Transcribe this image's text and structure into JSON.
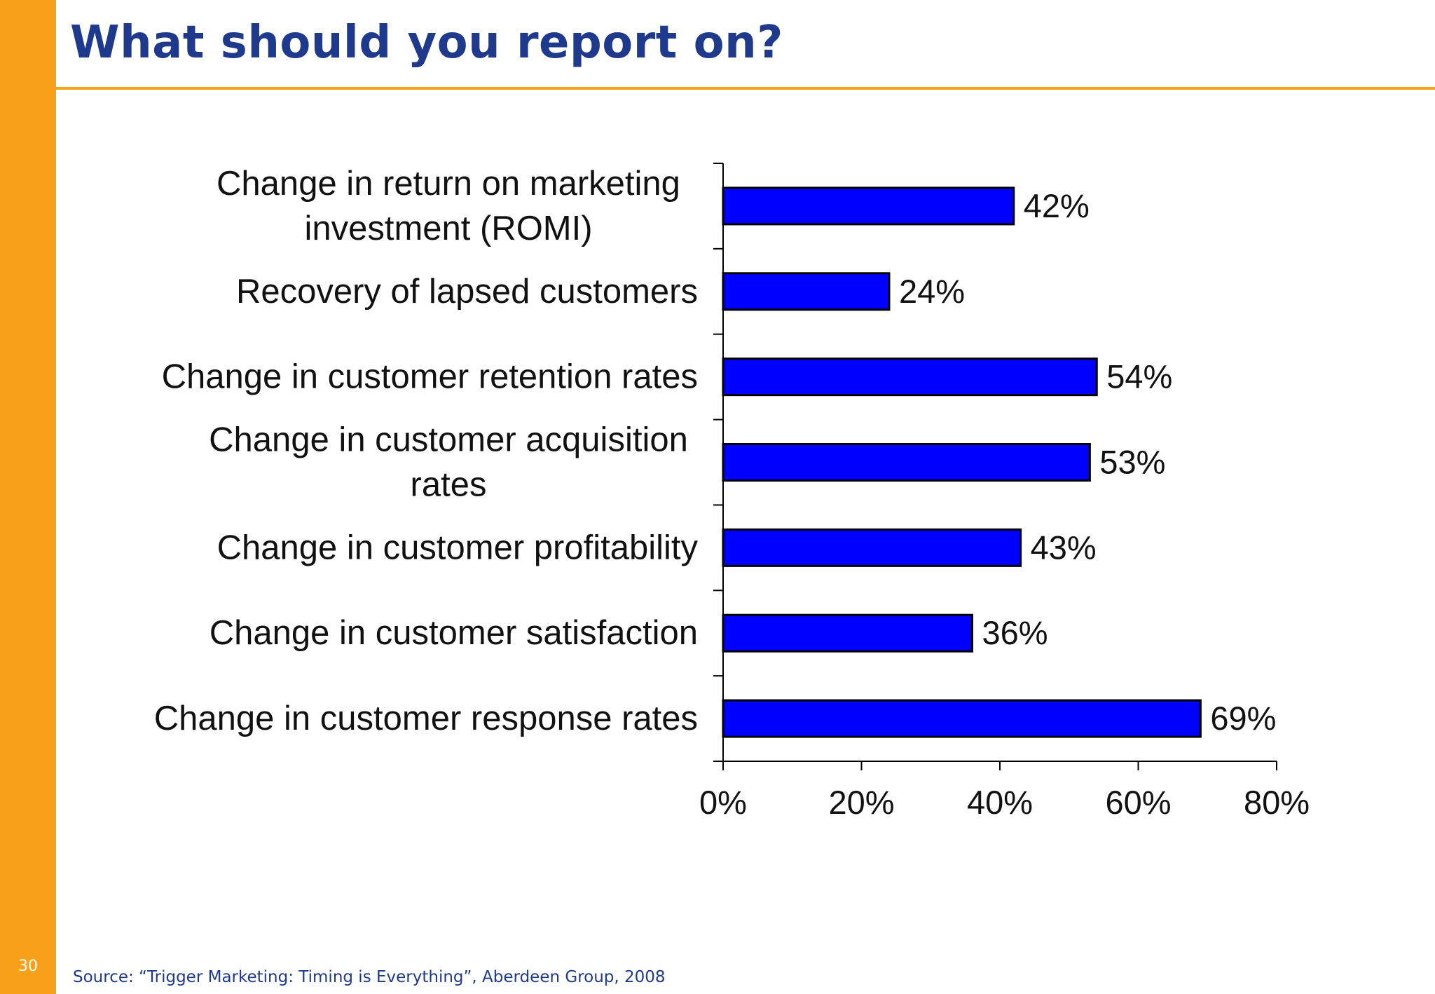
{
  "slide": {
    "title": "What should you report on?",
    "page_number": "30",
    "source": "Source: “Trigger Marketing: Timing is Everything”, Aberdeen Group, 2008",
    "accent_color": "#f9a01b",
    "title_color": "#1f3a8c"
  },
  "chart_data": {
    "type": "bar",
    "orientation": "horizontal",
    "title": "",
    "xlabel": "",
    "ylabel": "",
    "categories": [
      [
        "Change in return on marketing",
        "investment (ROMI)"
      ],
      [
        "Recovery of lapsed customers"
      ],
      [
        "Change in customer retention rates"
      ],
      [
        "Change in customer acquisition",
        "rates"
      ],
      [
        "Change in customer profitability"
      ],
      [
        "Change in customer satisfaction"
      ],
      [
        "Change in customer response rates"
      ]
    ],
    "values": [
      42,
      24,
      54,
      53,
      43,
      36,
      69
    ],
    "value_labels": [
      "42%",
      "24%",
      "54%",
      "53%",
      "43%",
      "36%",
      "69%"
    ],
    "xlim": [
      0,
      80
    ],
    "xticks": [
      0,
      20,
      40,
      60,
      80
    ],
    "xtick_labels": [
      "0%",
      "20%",
      "40%",
      "60%",
      "80%"
    ],
    "bar_color": "#0000ff",
    "grid": false,
    "legend": "none"
  }
}
